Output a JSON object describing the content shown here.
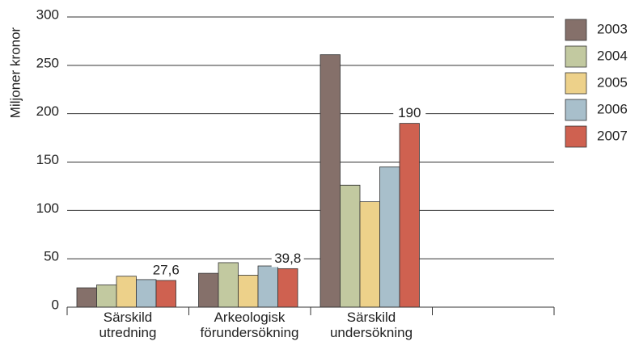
{
  "chart_data": {
    "type": "bar",
    "y_axis_label": "Miljoner kronor",
    "categories": [
      "Särskild\nutredning",
      "Arkeologisk\nförundersökning",
      "Särskild\nundersökning",
      null
    ],
    "series": [
      {
        "name": "2003",
        "color": "#85706a",
        "values": [
          20,
          35,
          261,
          null
        ]
      },
      {
        "name": "2004",
        "color": "#c2c9a0",
        "values": [
          23,
          46,
          126,
          null
        ]
      },
      {
        "name": "2005",
        "color": "#edd18a",
        "values": [
          32,
          33,
          109,
          null
        ]
      },
      {
        "name": "2006",
        "color": "#a8bfcb",
        "values": [
          28.5,
          42.6,
          145,
          null
        ]
      },
      {
        "name": "2007",
        "color": "#cf6150",
        "values": [
          27.6,
          39.8,
          190,
          null
        ],
        "value_labels": [
          "27,6",
          "39,8",
          "190",
          null
        ]
      }
    ],
    "ylim": [
      0,
      300
    ],
    "yticks": [
      0,
      50,
      100,
      150,
      200,
      250,
      300
    ],
    "grid": true,
    "legend": "right"
  }
}
